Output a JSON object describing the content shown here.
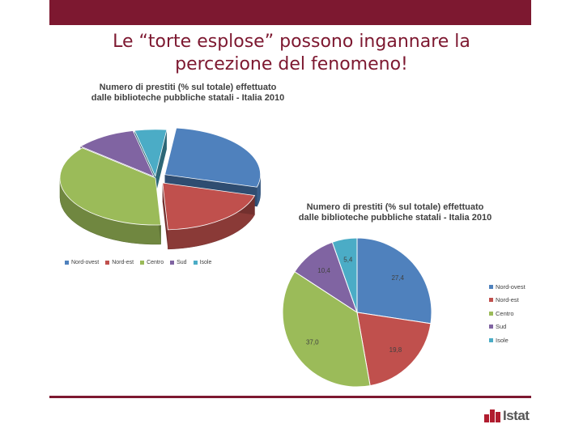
{
  "slide": {
    "title_line1": "Le “torte esplose” possono ingannare la",
    "title_line2": "percezione del fenomeno!",
    "logo_text": "Istat"
  },
  "colors": {
    "accent": "#7d1830",
    "series": [
      "#4f81bd",
      "#c0504d",
      "#9bbb59",
      "#8064a2",
      "#4bacc6"
    ]
  },
  "chart_data": [
    {
      "type": "pie",
      "style": "3d-exploded",
      "title_line1": "Numero di prestiti (% sul totale) effettuato",
      "title_line2": "dalle biblioteche pubbliche statali - Italia 2010",
      "categories": [
        "Nord-ovest",
        "Nord-est",
        "Centro",
        "Sud",
        "Isole"
      ],
      "values": [
        27.4,
        19.8,
        37.0,
        10.4,
        5.4
      ],
      "data_labels_shown": false,
      "legend": "bottom"
    },
    {
      "type": "pie",
      "style": "2d",
      "title_line1": "Numero di prestiti (% sul totale) effettuato",
      "title_line2": "dalle biblioteche pubbliche statali - Italia 2010",
      "categories": [
        "Nord-ovest",
        "Nord-est",
        "Centro",
        "Sud",
        "Isole"
      ],
      "values": [
        27.4,
        19.8,
        37.0,
        10.4,
        5.4
      ],
      "data_labels": [
        "27,4",
        "19,8",
        "37,0",
        "10,4",
        "5,4"
      ],
      "data_labels_shown": true,
      "legend": "right"
    }
  ]
}
